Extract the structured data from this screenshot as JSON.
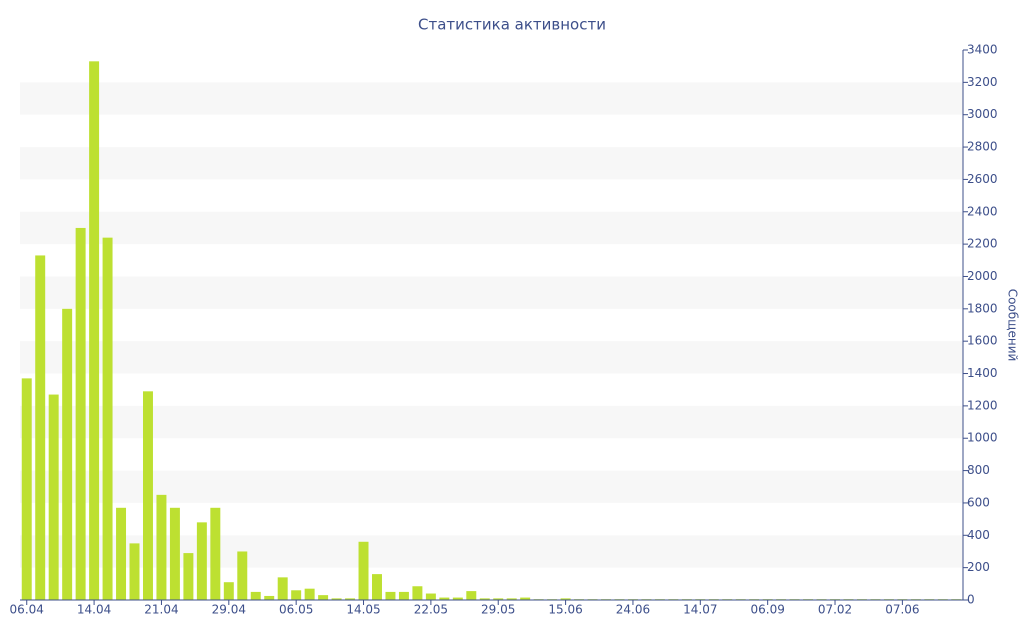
{
  "chart_data": {
    "type": "bar",
    "title": "Статистика активности",
    "y_label": "Сообщений",
    "categories": [
      "06.04",
      null,
      null,
      null,
      null,
      "14.04",
      null,
      null,
      null,
      null,
      "21.04",
      null,
      null,
      null,
      null,
      "29.04",
      null,
      null,
      null,
      null,
      "06.05",
      null,
      null,
      null,
      null,
      "14.05",
      null,
      null,
      null,
      null,
      "22.05",
      null,
      null,
      null,
      null,
      "29.05",
      null,
      null,
      null,
      null,
      "15.06",
      null,
      null,
      null,
      null,
      "24.06",
      null,
      null,
      null,
      null,
      "14.07",
      null,
      null,
      null,
      null,
      "06.09",
      null,
      null,
      null,
      null,
      "07.02",
      null,
      null,
      null,
      null,
      "07.06",
      null,
      null,
      null,
      null
    ],
    "values": [
      1370,
      2130,
      1270,
      1800,
      2300,
      3330,
      2240,
      570,
      350,
      1290,
      650,
      570,
      290,
      480,
      570,
      110,
      300,
      50,
      25,
      140,
      60,
      70,
      30,
      10,
      10,
      360,
      160,
      50,
      50,
      85,
      40,
      15,
      15,
      55,
      10,
      10,
      10,
      15,
      5,
      5,
      10,
      5,
      5,
      5,
      5,
      5,
      5,
      5,
      5,
      5,
      5,
      5,
      5,
      5,
      5,
      5,
      5,
      5,
      5,
      5,
      5,
      5,
      5,
      5,
      5,
      5,
      5,
      5,
      5,
      5
    ],
    "color": "#bde031",
    "ylim": [
      0,
      3400
    ],
    "yticks": [
      0,
      200,
      400,
      600,
      800,
      1000,
      1200,
      1400,
      1600,
      1800,
      2000,
      2200,
      2400,
      2600,
      2800,
      3000,
      3200,
      3400
    ],
    "y_axis_side": "right",
    "grid": true
  }
}
